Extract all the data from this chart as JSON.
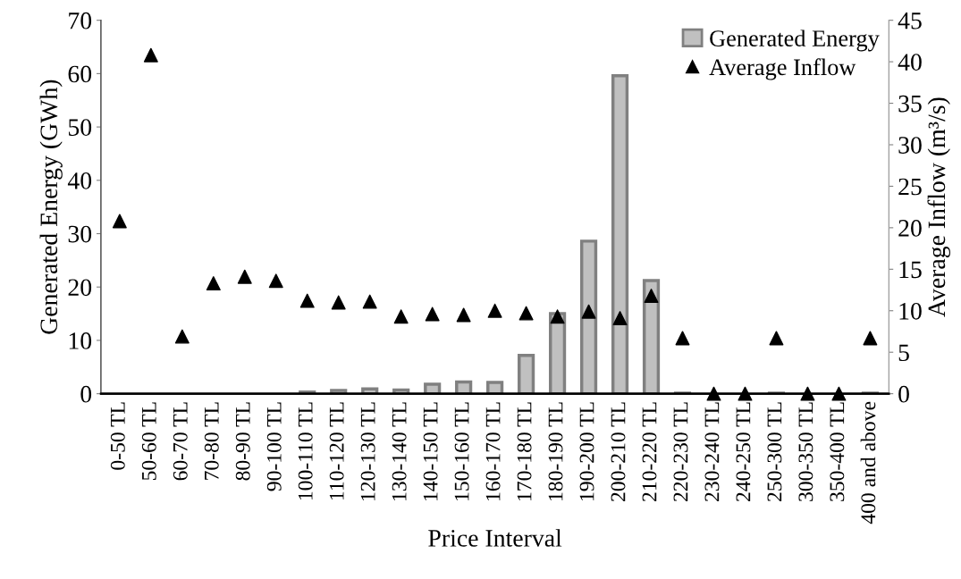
{
  "chart_data": {
    "type": "bar",
    "xlabel": "Price Interval",
    "ylabel": "Generated Energy (GWh)",
    "y2label": "Average Inflow (m³/s)",
    "categories": [
      "0-50 TL",
      "50-60 TL",
      "60-70 TL",
      "70-80 TL",
      "80-90 TL",
      "90-100 TL",
      "100-110 TL",
      "110-120 TL",
      "120-130 TL",
      "130-140 TL",
      "140-150 TL",
      "150-160 TL",
      "160-170 TL",
      "170-180 TL",
      "180-190 TL",
      "190-200 TL",
      "200-210 TL",
      "210-220 TL",
      "220-230 TL",
      "230-240 TL",
      "240-250 TL",
      "250-300 TL",
      "300-350 TL",
      "350-400 TL",
      "400 and above"
    ],
    "series": [
      {
        "name": "Generated Energy",
        "color": "#c0c0c0",
        "values": [
          0,
          0,
          0,
          0,
          0,
          0,
          0.3,
          0.6,
          0.9,
          0.7,
          1.8,
          2.2,
          2.1,
          7.2,
          15.0,
          28.6,
          59.6,
          21.2,
          0.1,
          0,
          0,
          0.1,
          0,
          0,
          0.1
        ]
      },
      {
        "name": "Average Inflow",
        "type": "scatter",
        "axis": "y2",
        "color": "#000000",
        "marker": "triangle",
        "values": [
          20.8,
          40.8,
          6.9,
          13.3,
          14.1,
          13.6,
          11.2,
          11.0,
          11.1,
          9.3,
          9.6,
          9.5,
          10.0,
          9.7,
          9.3,
          9.9,
          9.1,
          11.8,
          6.7,
          0,
          0,
          6.7,
          0,
          0,
          6.7
        ]
      }
    ],
    "ylim": [
      0,
      70
    ],
    "yticks": [
      0,
      10,
      20,
      30,
      40,
      50,
      60,
      70
    ],
    "y2lim": [
      0,
      45
    ],
    "y2ticks": [
      0,
      5,
      10,
      15,
      20,
      25,
      30,
      35,
      40,
      45
    ],
    "legend": "top right",
    "grid": false
  }
}
